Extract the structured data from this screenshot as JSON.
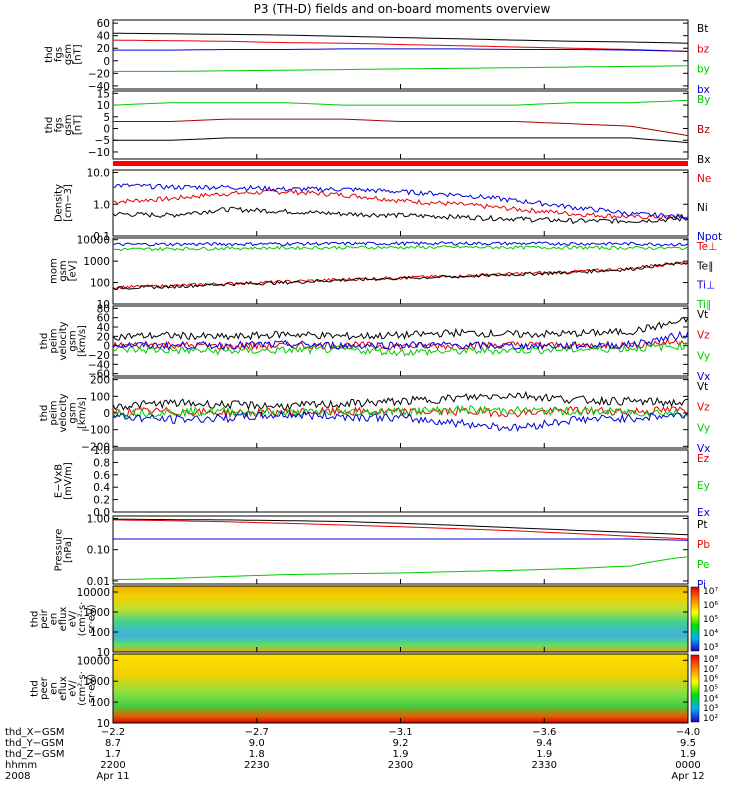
{
  "title": "P3 (TH-D) fields and on-board moments overview",
  "colors": {
    "black": "#000000",
    "red": "#e60000",
    "green": "#00cc00",
    "blue": "#0000dd",
    "darkred": "#a00000",
    "flag": "#ff0000"
  },
  "chart_data": [
    {
      "type": "line",
      "id": "fgs",
      "ylabel_lines": [
        "thd",
        "fgs",
        "gsm",
        "[nT]"
      ],
      "yticks": [
        "60",
        "40",
        "20",
        "0",
        "−20",
        "−40"
      ],
      "ylim": [
        -45,
        65
      ],
      "log": false,
      "series": [
        {
          "name": "Bt",
          "color": "black",
          "values": [
            44,
            43,
            42,
            41,
            39,
            37,
            35,
            33,
            31,
            30,
            28
          ]
        },
        {
          "name": "bz",
          "color": "red",
          "values": [
            33,
            32,
            31,
            29,
            28,
            26,
            24,
            22,
            20,
            18,
            15
          ]
        },
        {
          "name": "by",
          "color": "green",
          "values": [
            -17,
            -17,
            -16,
            -15,
            -14,
            -13,
            -12,
            -11,
            -10,
            -9,
            -8
          ]
        },
        {
          "name": "bx",
          "color": "blue",
          "values": [
            17,
            17,
            18,
            18,
            19,
            19,
            19,
            18,
            18,
            17,
            15
          ]
        }
      ]
    },
    {
      "type": "line",
      "id": "fgs_dsl",
      "ylabel_lines": [
        "thd",
        "fgs",
        "gsm",
        "[nT]"
      ],
      "yticks": [
        "15",
        "10",
        "5",
        "0",
        "−5",
        "−10"
      ],
      "ylim": [
        -13,
        16
      ],
      "log": false,
      "series": [
        {
          "name": "By",
          "color": "green",
          "values": [
            10,
            11,
            11,
            11,
            10,
            10,
            10,
            10,
            11,
            11,
            12
          ]
        },
        {
          "name": "Bz",
          "color": "darkred",
          "values": [
            3,
            3,
            4,
            4,
            4,
            3,
            3,
            3,
            2,
            1,
            -3
          ]
        },
        {
          "name": "Bx",
          "color": "black",
          "values": [
            -5,
            -5,
            -4,
            -4,
            -4,
            -4,
            -4,
            -4,
            -4,
            -4,
            -6
          ]
        }
      ]
    },
    {
      "type": "line",
      "id": "density",
      "ylabel_lines": [
        "Density",
        "[cm−3]"
      ],
      "yticks": [
        "10.0",
        "1.0",
        "0.1"
      ],
      "ylim": [
        0.1,
        12
      ],
      "log": true,
      "series": [
        {
          "name": "Ne",
          "color": "red",
          "values": [
            1.2,
            1.5,
            2.2,
            2.5,
            2.0,
            1.3,
            1.0,
            0.7,
            0.5,
            0.4,
            0.4
          ]
        },
        {
          "name": "Ni",
          "color": "black",
          "values": [
            0.5,
            0.45,
            0.7,
            0.6,
            0.5,
            0.45,
            0.4,
            0.35,
            0.3,
            0.3,
            0.35
          ]
        },
        {
          "name": "Npot",
          "color": "blue",
          "values": [
            4,
            3.5,
            3.5,
            3.0,
            3.0,
            2.5,
            2.0,
            1.3,
            0.8,
            0.5,
            0.4
          ]
        }
      ]
    },
    {
      "type": "line",
      "id": "temp",
      "ylabel_lines": [
        "mom",
        "gsm",
        "[eV]"
      ],
      "yticks": [
        "10000",
        "1000",
        "100",
        "10"
      ],
      "ylim": [
        10,
        12000
      ],
      "log": true,
      "series": [
        {
          "name": "Te⊥",
          "color": "red",
          "values": [
            60,
            70,
            90,
            110,
            140,
            170,
            200,
            260,
            320,
            450,
            900
          ]
        },
        {
          "name": "Te∥",
          "color": "black",
          "values": [
            55,
            65,
            85,
            100,
            130,
            160,
            190,
            240,
            300,
            420,
            850
          ]
        },
        {
          "name": "Ti⊥",
          "color": "blue",
          "values": [
            6000,
            6200,
            6300,
            6500,
            6600,
            6700,
            6800,
            6700,
            6600,
            6500,
            6000
          ]
        },
        {
          "name": "Ti∥",
          "color": "green",
          "values": [
            3500,
            3800,
            4000,
            4200,
            4300,
            4400,
            4500,
            4400,
            4300,
            4200,
            4000
          ]
        }
      ]
    },
    {
      "type": "line",
      "id": "peim_v1",
      "ylabel_lines": [
        "thd",
        "peim",
        "velocity",
        "gsm",
        "[km/s]"
      ],
      "yticks": [
        "80",
        "60",
        "40",
        "20",
        "0",
        "−20",
        "−40",
        "−60"
      ],
      "ylim": [
        -65,
        85
      ],
      "log": false,
      "series": [
        {
          "name": "Vt",
          "color": "black",
          "values": [
            20,
            22,
            18,
            25,
            20,
            22,
            28,
            24,
            26,
            30,
            55
          ]
        },
        {
          "name": "Vz",
          "color": "red",
          "values": [
            0,
            2,
            -2,
            0,
            1,
            -1,
            0,
            2,
            0,
            1,
            10
          ]
        },
        {
          "name": "Vy",
          "color": "green",
          "values": [
            -8,
            -10,
            -12,
            -10,
            -8,
            -14,
            -12,
            -10,
            -8,
            -6,
            0
          ]
        },
        {
          "name": "Vx",
          "color": "blue",
          "values": [
            2,
            0,
            1,
            3,
            0,
            2,
            1,
            -1,
            0,
            2,
            25
          ]
        }
      ]
    },
    {
      "type": "line",
      "id": "peim_v2",
      "ylabel_lines": [
        "thd",
        "peim",
        "velocity",
        "gsm",
        "[km/s]"
      ],
      "yticks": [
        "200",
        "100",
        "0",
        "−100",
        "−200"
      ],
      "ylim": [
        -210,
        210
      ],
      "log": false,
      "series": [
        {
          "name": "Vt",
          "color": "black",
          "values": [
            40,
            60,
            50,
            40,
            55,
            70,
            90,
            110,
            80,
            70,
            60
          ]
        },
        {
          "name": "Vz",
          "color": "red",
          "values": [
            5,
            10,
            0,
            5,
            8,
            5,
            10,
            0,
            15,
            10,
            20
          ]
        },
        {
          "name": "Vy",
          "color": "green",
          "values": [
            0,
            5,
            10,
            0,
            5,
            10,
            20,
            15,
            10,
            5,
            0
          ]
        },
        {
          "name": "Vx",
          "color": "blue",
          "values": [
            -20,
            -40,
            -30,
            -10,
            -20,
            -30,
            -60,
            -90,
            -40,
            -30,
            -10
          ]
        }
      ]
    },
    {
      "type": "line",
      "id": "exb",
      "ylabel_lines": [
        "E−VxB",
        "[mV/m]"
      ],
      "yticks": [
        "1.0",
        "0.8",
        "0.6",
        "0.4",
        "0.2",
        "0.0"
      ],
      "ylim": [
        0,
        1.0
      ],
      "log": false,
      "series": [
        {
          "name": "Ez",
          "color": "red",
          "values": []
        },
        {
          "name": "Ey",
          "color": "green",
          "values": []
        },
        {
          "name": "Ex",
          "color": "blue",
          "values": []
        }
      ]
    },
    {
      "type": "line",
      "id": "pressure",
      "ylabel_lines": [
        "Pressure",
        "[nPa]"
      ],
      "yticks": [
        "1.00",
        "0.10",
        "0.01"
      ],
      "ylim": [
        0.008,
        1.2
      ],
      "log": true,
      "series": [
        {
          "name": "Pt",
          "color": "black",
          "values": [
            0.95,
            0.92,
            0.9,
            0.85,
            0.8,
            0.7,
            0.6,
            0.5,
            0.42,
            0.36,
            0.3
          ]
        },
        {
          "name": "Pb",
          "color": "red",
          "values": [
            0.9,
            0.85,
            0.78,
            0.7,
            0.62,
            0.54,
            0.47,
            0.4,
            0.33,
            0.27,
            0.22
          ]
        },
        {
          "name": "Pe",
          "color": "green",
          "values": [
            0.011,
            0.012,
            0.014,
            0.016,
            0.017,
            0.018,
            0.02,
            0.022,
            0.025,
            0.03,
            0.06
          ]
        },
        {
          "name": "Pi",
          "color": "blue",
          "values": [
            0.22,
            0.22,
            0.22,
            0.22,
            0.22,
            0.22,
            0.22,
            0.22,
            0.22,
            0.22,
            0.2
          ]
        }
      ]
    },
    {
      "type": "heatmap",
      "id": "peir",
      "ylabel_lines": [
        "thd",
        "peir",
        "en",
        "eflux",
        "eV/",
        "(cm²·s·",
        "sr·eV)"
      ],
      "yticks": [
        "10000",
        "1000",
        "100",
        "10"
      ],
      "ylim": [
        10,
        20000
      ],
      "log": true,
      "colorbar_labels": [
        "10⁷",
        "10⁶",
        "10⁵",
        "10⁴",
        "10³"
      ]
    },
    {
      "type": "heatmap",
      "id": "peer",
      "ylabel_lines": [
        "thd",
        "peer",
        "en",
        "eflux",
        "eV/",
        "(cm²·s·",
        "sr·eV)"
      ],
      "yticks": [
        "10000",
        "1000",
        "100",
        "10"
      ],
      "ylim": [
        10,
        20000
      ],
      "log": true,
      "colorbar_labels": [
        "10⁸",
        "10⁷",
        "10⁶",
        "10⁵",
        "10⁴",
        "10³",
        "10²"
      ]
    }
  ],
  "x_axis": {
    "row_labels": [
      "thd_X−GSM",
      "thd_Y−GSM",
      "thd_Z−GSM",
      "hhmm",
      "2008"
    ],
    "ticks": [
      {
        "values": [
          "−2.2",
          "8.7",
          "1.7",
          "2200",
          "Apr 11"
        ]
      },
      {
        "values": [
          "−2.7",
          "9.0",
          "1.8",
          "2230",
          ""
        ]
      },
      {
        "values": [
          "−3.1",
          "9.2",
          "1.9",
          "2300",
          ""
        ]
      },
      {
        "values": [
          "−3.6",
          "9.4",
          "1.9",
          "2330",
          ""
        ]
      },
      {
        "values": [
          "−4.0",
          "9.5",
          "1.9",
          "0000",
          "Apr 12"
        ]
      }
    ]
  }
}
